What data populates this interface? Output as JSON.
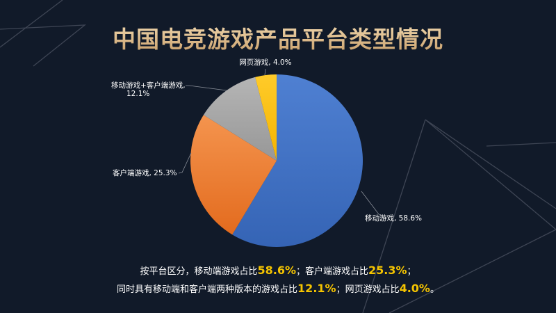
{
  "header": {
    "title": "中国电竞游戏产品平台类型情况"
  },
  "chart_data": {
    "type": "pie",
    "title": "中国电竞游戏产品平台类型情况",
    "slices": [
      {
        "label": "移动游戏, 58.6%",
        "name": "移动游戏",
        "value": 58.6,
        "color": "#4472c4"
      },
      {
        "label": "客户端游戏, 25.3%",
        "name": "客户端游戏",
        "value": 25.3,
        "color": "#ed7d31"
      },
      {
        "label": "移动游戏+客户端游戏, 12.1%",
        "name": "移动游戏+客户端游戏",
        "value": 12.1,
        "color": "#a5a5a5"
      },
      {
        "label": "网页游戏, 4.0%",
        "name": "网页游戏",
        "value": 4.0,
        "color": "#ffc000"
      }
    ],
    "start": "12 o'clock",
    "direction": "clockwise",
    "unit": "%"
  },
  "summary": {
    "l1_a": "按平台区分，移动端游戏占比",
    "l1_v1": "58.6%",
    "l1_b": "；客户端游戏占比",
    "l1_v2": "25.3%",
    "l1_c": "；",
    "l2_a": "同时具有移动端和客户端两种版本的游戏占比",
    "l2_v1": "12.1%",
    "l2_b": "；网页游戏占比",
    "l2_v2": "4.0%",
    "l2_c": "。"
  },
  "colors": {
    "background": "#111a29",
    "title": "#e3c9a0",
    "highlight": "#f5c400",
    "decoration": "#4d5463"
  }
}
